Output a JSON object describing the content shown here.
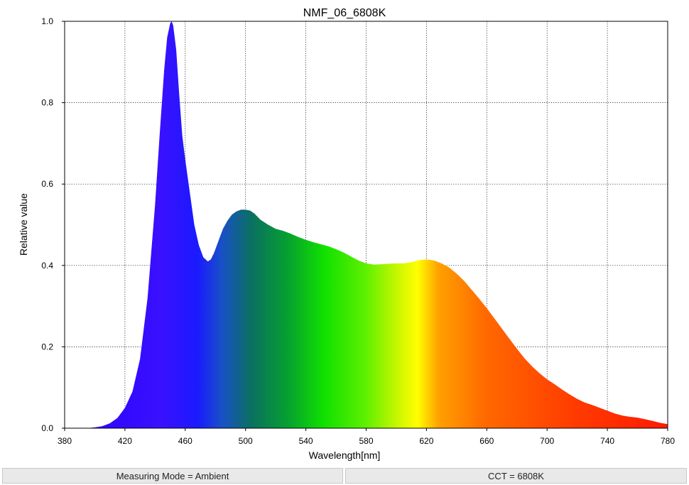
{
  "chart_data": {
    "type": "area",
    "title": "NMF_06_6808K",
    "xlabel": "Wavelength[nm]",
    "ylabel": "Relative value",
    "xlim": [
      380,
      780
    ],
    "ylim": [
      0.0,
      1.0
    ],
    "x_ticks": [
      "380",
      "420",
      "460",
      "500",
      "540",
      "580",
      "620",
      "660",
      "700",
      "740",
      "780"
    ],
    "y_ticks": [
      "0.0",
      "0.2",
      "0.4",
      "0.6",
      "0.8",
      "1.0"
    ],
    "grid": true,
    "grid_style": "dotted",
    "fill": "visible-spectrum-gradient",
    "series": [
      {
        "x": [
          380,
          395,
          400,
          405,
          410,
          415,
          420,
          425,
          430,
          435,
          440,
          443,
          446,
          448,
          450,
          451,
          452,
          454,
          456,
          458,
          460,
          463,
          466,
          469,
          472,
          475,
          477,
          479,
          482,
          485,
          488,
          491,
          494,
          497,
          500,
          503,
          506,
          510,
          515,
          520,
          525,
          530,
          535,
          540,
          545,
          550,
          555,
          560,
          565,
          570,
          575,
          580,
          585,
          590,
          595,
          600,
          605,
          610,
          615,
          620,
          625,
          630,
          635,
          640,
          645,
          650,
          655,
          660,
          665,
          670,
          675,
          680,
          685,
          690,
          695,
          700,
          705,
          710,
          715,
          720,
          725,
          730,
          735,
          740,
          745,
          750,
          755,
          760,
          765,
          770,
          775,
          780
        ],
        "y": [
          0.0,
          0.0,
          0.002,
          0.005,
          0.012,
          0.025,
          0.05,
          0.09,
          0.17,
          0.32,
          0.55,
          0.72,
          0.88,
          0.96,
          0.995,
          1.0,
          0.99,
          0.93,
          0.82,
          0.72,
          0.66,
          0.58,
          0.5,
          0.45,
          0.42,
          0.41,
          0.415,
          0.43,
          0.46,
          0.49,
          0.51,
          0.525,
          0.533,
          0.537,
          0.537,
          0.535,
          0.527,
          0.512,
          0.5,
          0.49,
          0.485,
          0.478,
          0.47,
          0.463,
          0.457,
          0.452,
          0.447,
          0.44,
          0.432,
          0.422,
          0.412,
          0.405,
          0.402,
          0.403,
          0.404,
          0.405,
          0.405,
          0.408,
          0.413,
          0.415,
          0.412,
          0.405,
          0.395,
          0.38,
          0.362,
          0.34,
          0.318,
          0.295,
          0.27,
          0.245,
          0.22,
          0.195,
          0.172,
          0.152,
          0.135,
          0.12,
          0.108,
          0.095,
          0.083,
          0.072,
          0.063,
          0.057,
          0.05,
          0.043,
          0.036,
          0.031,
          0.028,
          0.026,
          0.022,
          0.018,
          0.013,
          0.01
        ]
      }
    ]
  },
  "status": {
    "measuring_mode": "Measuring Mode = Ambient",
    "cct": "CCT = 6808K"
  }
}
